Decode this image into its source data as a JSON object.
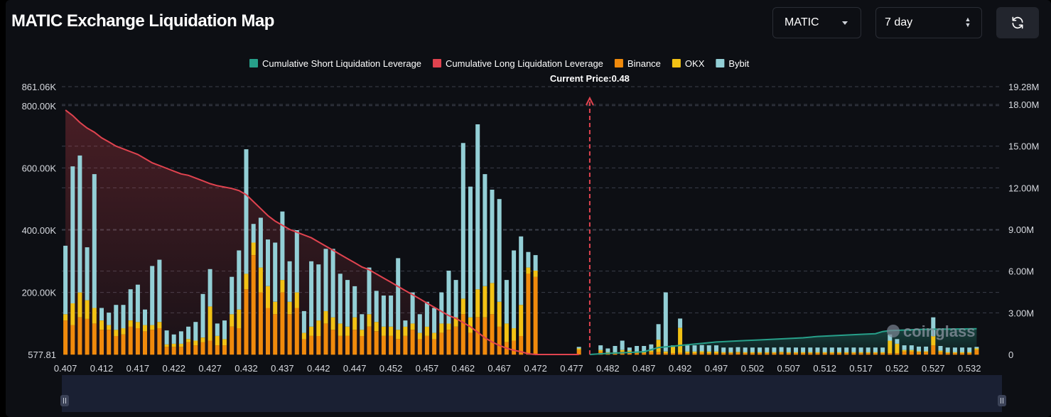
{
  "header": {
    "title": "MATIC Exchange Liquidation Map",
    "symbol_value": "MATIC",
    "range_value": "7 day"
  },
  "colors": {
    "short": "#27a08a",
    "long": "#e0434f",
    "binance": "#f08a0c",
    "okx": "#f2c215",
    "bybit": "#93cfd6",
    "background": "#0d0f14"
  },
  "watermark": "coinglass",
  "chart_data": {
    "type": "bar",
    "legend": [
      {
        "name": "Cumulative Short Liquidation Leverage",
        "color": "#27a08a"
      },
      {
        "name": "Cumulative Long Liquidation Leverage",
        "color": "#e0434f"
      },
      {
        "name": "Binance",
        "color": "#f08a0c"
      },
      {
        "name": "OKX",
        "color": "#f2c215"
      },
      {
        "name": "Bybit",
        "color": "#93cfd6"
      }
    ],
    "current_price_label": "Current Price:0.48",
    "current_price": 0.4795,
    "x_ticks": [
      "0.407",
      "0.412",
      "0.417",
      "0.422",
      "0.427",
      "0.432",
      "0.437",
      "0.442",
      "0.447",
      "0.452",
      "0.457",
      "0.462",
      "0.467",
      "0.472",
      "0.477",
      "0.482",
      "0.487",
      "0.492",
      "0.497",
      "0.502",
      "0.507",
      "0.512",
      "0.517",
      "0.522",
      "0.527",
      "0.532"
    ],
    "x_range": [
      0.4065,
      0.5365
    ],
    "y_left_ticks": [
      {
        "label": "861.06K",
        "value": 861060
      },
      {
        "label": "800.00K",
        "value": 800000
      },
      {
        "label": "600.00K",
        "value": 600000
      },
      {
        "label": "400.00K",
        "value": 400000
      },
      {
        "label": "200.00K",
        "value": 200000
      },
      {
        "label": "577.81",
        "value": 577.81
      }
    ],
    "y_left_range": [
      577.81,
      861060
    ],
    "y_right_ticks": [
      {
        "label": "19.28M",
        "value": 19280000
      },
      {
        "label": "18.00M",
        "value": 18000000
      },
      {
        "label": "15.00M",
        "value": 15000000
      },
      {
        "label": "12.00M",
        "value": 12000000
      },
      {
        "label": "9.00M",
        "value": 9000000
      },
      {
        "label": "6.00M",
        "value": 6000000
      },
      {
        "label": "3.00M",
        "value": 3000000
      },
      {
        "label": "0",
        "value": 0
      }
    ],
    "y_right_range": [
      0,
      19280000
    ],
    "bars": {
      "x": [
        0.407,
        0.408,
        0.409,
        0.41,
        0.411,
        0.412,
        0.413,
        0.414,
        0.415,
        0.416,
        0.417,
        0.418,
        0.419,
        0.42,
        0.421,
        0.422,
        0.423,
        0.424,
        0.425,
        0.426,
        0.427,
        0.428,
        0.429,
        0.43,
        0.431,
        0.432,
        0.433,
        0.434,
        0.435,
        0.436,
        0.437,
        0.438,
        0.439,
        0.44,
        0.441,
        0.442,
        0.443,
        0.444,
        0.445,
        0.446,
        0.447,
        0.448,
        0.449,
        0.45,
        0.451,
        0.452,
        0.453,
        0.454,
        0.455,
        0.456,
        0.457,
        0.458,
        0.459,
        0.46,
        0.461,
        0.462,
        0.463,
        0.464,
        0.465,
        0.466,
        0.467,
        0.468,
        0.469,
        0.47,
        0.471,
        0.472,
        0.478,
        0.481,
        0.482,
        0.483,
        0.484,
        0.485,
        0.486,
        0.487,
        0.488,
        0.489,
        0.49,
        0.491,
        0.492,
        0.493,
        0.494,
        0.495,
        0.496,
        0.497,
        0.498,
        0.499,
        0.5,
        0.501,
        0.502,
        0.503,
        0.504,
        0.505,
        0.506,
        0.507,
        0.508,
        0.509,
        0.51,
        0.511,
        0.512,
        0.513,
        0.514,
        0.515,
        0.516,
        0.517,
        0.518,
        0.519,
        0.52,
        0.521,
        0.522,
        0.523,
        0.524,
        0.525,
        0.526,
        0.527,
        0.528,
        0.529,
        0.53,
        0.531,
        0.532,
        0.533
      ],
      "binance": [
        110000,
        95000,
        120000,
        115000,
        100000,
        80000,
        80000,
        60000,
        65000,
        90000,
        85000,
        75000,
        80000,
        85000,
        25000,
        25000,
        25000,
        40000,
        30000,
        40000,
        45000,
        30000,
        30000,
        90000,
        85000,
        210000,
        320000,
        200000,
        150000,
        130000,
        200000,
        130000,
        150000,
        50000,
        60000,
        60000,
        100000,
        80000,
        60000,
        60000,
        80000,
        60000,
        90000,
        75000,
        60000,
        60000,
        50000,
        60000,
        80000,
        50000,
        60000,
        50000,
        70000,
        80000,
        90000,
        130000,
        70000,
        120000,
        120000,
        130000,
        90000,
        40000,
        45000,
        60000,
        260000,
        250000,
        15000,
        10000,
        5000,
        5000,
        10000,
        8000,
        5000,
        5000,
        8000,
        8000,
        5000,
        5000,
        6000,
        5000,
        5000,
        6000,
        5000,
        5000,
        5000,
        5000,
        6000,
        5000,
        5000,
        5000,
        5000,
        5000,
        6000,
        5000,
        5000,
        5000,
        5000,
        5000,
        5000,
        5000,
        5000,
        5000,
        5000,
        5000,
        5000,
        5000,
        5000,
        5000,
        5000,
        10000,
        10000,
        8000,
        8000,
        30000,
        8000,
        5000,
        5000,
        5000,
        5000,
        15000
      ],
      "okx": [
        20000,
        70000,
        80000,
        60000,
        50000,
        30000,
        15000,
        20000,
        20000,
        20000,
        20000,
        20000,
        15000,
        20000,
        8000,
        10000,
        10000,
        10000,
        15000,
        15000,
        110000,
        30000,
        20000,
        40000,
        60000,
        50000,
        40000,
        80000,
        70000,
        40000,
        40000,
        40000,
        50000,
        20000,
        30000,
        50000,
        40000,
        40000,
        40000,
        30000,
        40000,
        20000,
        40000,
        30000,
        30000,
        30000,
        30000,
        30000,
        20000,
        20000,
        30000,
        20000,
        30000,
        20000,
        30000,
        50000,
        50000,
        90000,
        100000,
        100000,
        80000,
        60000,
        40000,
        100000,
        20000,
        20000,
        5000,
        5000,
        3000,
        3000,
        5000,
        5000,
        3000,
        3000,
        5000,
        40000,
        5000,
        20000,
        80000,
        5000,
        5000,
        5000,
        5000,
        5000,
        3000,
        3000,
        3000,
        3000,
        3000,
        3000,
        3000,
        3000,
        3000,
        3000,
        3000,
        3000,
        3000,
        3000,
        3000,
        3000,
        3000,
        3000,
        3000,
        3000,
        3000,
        3000,
        3000,
        40000,
        30000,
        5000,
        5000,
        3000,
        3000,
        30000,
        5000,
        3000,
        3000,
        3000,
        3000,
        5000
      ],
      "bybit": [
        220000,
        440000,
        440000,
        170000,
        430000,
        40000,
        40000,
        80000,
        75000,
        100000,
        120000,
        50000,
        190000,
        200000,
        45000,
        30000,
        40000,
        40000,
        60000,
        140000,
        120000,
        40000,
        60000,
        120000,
        190000,
        400000,
        60000,
        160000,
        150000,
        190000,
        220000,
        130000,
        200000,
        70000,
        210000,
        180000,
        200000,
        220000,
        160000,
        150000,
        100000,
        50000,
        150000,
        100000,
        100000,
        100000,
        230000,
        20000,
        100000,
        60000,
        80000,
        80000,
        100000,
        170000,
        120000,
        500000,
        420000,
        530000,
        360000,
        300000,
        330000,
        140000,
        250000,
        220000,
        50000,
        50000,
        5000,
        15000,
        12000,
        20000,
        30000,
        10000,
        20000,
        20000,
        20000,
        50000,
        190000,
        5000,
        30000,
        20000,
        20000,
        20000,
        20000,
        20000,
        15000,
        15000,
        15000,
        15000,
        15000,
        15000,
        15000,
        15000,
        15000,
        15000,
        15000,
        15000,
        15000,
        15000,
        15000,
        15000,
        15000,
        15000,
        15000,
        15000,
        15000,
        15000,
        15000,
        20000,
        15000,
        15000,
        15000,
        15000,
        15000,
        60000,
        15000,
        15000,
        15000,
        15000,
        15000,
        5000
      ]
    },
    "cumulative_long": {
      "x": [
        0.407,
        0.408,
        0.409,
        0.41,
        0.411,
        0.412,
        0.413,
        0.414,
        0.415,
        0.416,
        0.417,
        0.418,
        0.419,
        0.42,
        0.421,
        0.422,
        0.423,
        0.424,
        0.425,
        0.426,
        0.427,
        0.428,
        0.429,
        0.43,
        0.431,
        0.432,
        0.433,
        0.434,
        0.435,
        0.436,
        0.437,
        0.438,
        0.439,
        0.44,
        0.441,
        0.442,
        0.443,
        0.444,
        0.445,
        0.446,
        0.447,
        0.448,
        0.449,
        0.45,
        0.451,
        0.452,
        0.453,
        0.454,
        0.455,
        0.456,
        0.457,
        0.458,
        0.459,
        0.46,
        0.461,
        0.462,
        0.463,
        0.464,
        0.465,
        0.466,
        0.467,
        0.468,
        0.469,
        0.47,
        0.471,
        0.472,
        0.478
      ],
      "y": [
        17600000,
        17200000,
        16700000,
        16300000,
        16000000,
        15600000,
        15300000,
        15000000,
        14800000,
        14600000,
        14400000,
        14100000,
        13800000,
        13600000,
        13400000,
        13200000,
        13000000,
        12900000,
        12700000,
        12500000,
        12300000,
        12150000,
        12050000,
        11950000,
        11800000,
        11500000,
        11000000,
        10500000,
        10000000,
        9600000,
        9300000,
        9000000,
        8800000,
        8600000,
        8400000,
        8100000,
        7800000,
        7500000,
        7200000,
        6900000,
        6600000,
        6300000,
        6100000,
        5800000,
        5500000,
        5200000,
        4900000,
        4600000,
        4300000,
        4000000,
        3700000,
        3400000,
        3100000,
        2800000,
        2600000,
        2300000,
        2000000,
        1600000,
        1200000,
        900000,
        650000,
        450000,
        300000,
        200000,
        50000,
        0,
        0
      ]
    },
    "cumulative_short": {
      "x": [
        0.4795,
        0.481,
        0.483,
        0.485,
        0.487,
        0.489,
        0.491,
        0.493,
        0.495,
        0.497,
        0.499,
        0.501,
        0.503,
        0.505,
        0.507,
        0.509,
        0.511,
        0.513,
        0.515,
        0.517,
        0.519,
        0.52,
        0.521,
        0.523,
        0.525,
        0.527,
        0.529,
        0.531,
        0.533
      ],
      "y": [
        0,
        50000,
        100000,
        150000,
        200000,
        500000,
        600000,
        700000,
        800000,
        900000,
        950000,
        1000000,
        1050000,
        1100000,
        1150000,
        1200000,
        1300000,
        1350000,
        1400000,
        1450000,
        1500000,
        1650000,
        1720000,
        1760000,
        1800000,
        1820000,
        1830000,
        1840000,
        1850000
      ]
    }
  }
}
